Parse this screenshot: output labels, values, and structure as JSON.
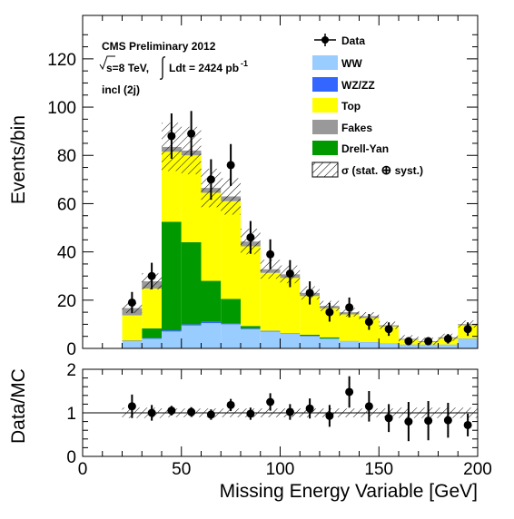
{
  "chart_data": [
    {
      "type": "bar",
      "stacked": true,
      "xlabel": "Missing Energy Variable [GeV]",
      "ylabel": "Events/bin",
      "xlim": [
        0,
        200
      ],
      "ylim": [
        0,
        138
      ],
      "xticks": [
        "0",
        "50",
        "100",
        "150",
        "200"
      ],
      "yticks": [
        "0",
        "20",
        "40",
        "60",
        "80",
        "100",
        "120"
      ],
      "bin_edges": [
        20,
        30,
        40,
        50,
        60,
        70,
        80,
        90,
        100,
        110,
        120,
        130,
        140,
        150,
        160,
        170,
        180,
        190,
        200
      ],
      "annotations": [
        "CMS Preliminary 2012",
        "incl (2j)"
      ],
      "lumi_label": {
        "sqrt_s": "s=8 TeV,",
        "integral": "Ldt = 2424 pb",
        "exponent": "-1"
      },
      "legend": {
        "placement": "top-right",
        "data": "Data",
        "ww": "WW",
        "wzzz": "WZ/ZZ",
        "top": "Top",
        "fakes": "Fakes",
        "dy": "Drell-Yan",
        "unc_prefix": "σ (stat. ",
        "unc_oplus": "⊕",
        "unc_suffix": " syst.)"
      },
      "colors": {
        "ww": "#99ccff",
        "wzzz": "#3366ff",
        "top": "#ffff00",
        "fakes": "#999999",
        "dy": "#009900",
        "data": "#000000"
      },
      "series": [
        {
          "name": "WW",
          "values": [
            3,
            4,
            7,
            9.5,
            10.5,
            10,
            8,
            7,
            6,
            5,
            4,
            3,
            2.5,
            2,
            1.5,
            1.5,
            1.5,
            4
          ]
        },
        {
          "name": "WZ/ZZ",
          "values": [
            0.2,
            0.3,
            0.5,
            0.5,
            0.5,
            0.5,
            0.3,
            0.3,
            0.2,
            0.2,
            0.1,
            0.1,
            0.1,
            0.1,
            0.1,
            0.1,
            0.1,
            0.1
          ]
        },
        {
          "name": "Drell-Yan",
          "values": [
            0,
            4,
            45,
            34,
            17,
            10,
            1,
            0,
            0,
            0.5,
            0.5,
            0,
            0,
            0,
            0,
            0,
            0,
            0
          ]
        },
        {
          "name": "Top",
          "values": [
            10.5,
            16.5,
            29,
            36,
            36.5,
            40.5,
            33,
            24,
            23,
            16,
            12,
            11,
            10,
            7,
            2,
            1,
            2.5,
            5.5
          ]
        },
        {
          "name": "Fakes",
          "values": [
            3,
            3,
            2,
            2,
            2,
            2,
            2,
            1.5,
            1.5,
            1.3,
            1,
            0.9,
            0.8,
            0.5,
            0.4,
            0.4,
            0.5,
            0.5
          ]
        }
      ],
      "data_points": {
        "name": "Data",
        "x": [
          25,
          35,
          45,
          55,
          65,
          75,
          85,
          95,
          105,
          115,
          125,
          135,
          145,
          155,
          165,
          175,
          185,
          195
        ],
        "y": [
          19,
          30,
          88,
          89,
          70,
          76,
          46,
          39,
          31,
          23,
          15,
          17,
          11,
          8,
          3,
          3,
          4,
          8
        ],
        "err": [
          4.4,
          5.5,
          9.4,
          9.4,
          8.4,
          8.7,
          6.8,
          6.2,
          5.6,
          4.8,
          3.9,
          4.1,
          3.3,
          2.8,
          1.7,
          1.7,
          2.0,
          2.8
        ]
      },
      "uncertainty_frac": 0.12
    },
    {
      "type": "scatter",
      "xlabel": "Missing Energy Variable [GeV]",
      "ylabel": "Data/MC",
      "xlim": [
        0,
        200
      ],
      "ylim": [
        0,
        2
      ],
      "xticks": [
        "0",
        "50",
        "100",
        "150",
        "200"
      ],
      "yticks": [
        "0",
        "1",
        "2"
      ],
      "reference_line": 1,
      "x": [
        25,
        35,
        45,
        55,
        65,
        75,
        85,
        95,
        105,
        115,
        125,
        135,
        145,
        155,
        165,
        175,
        185,
        195
      ],
      "y": [
        1.15,
        1.0,
        1.05,
        1.02,
        0.96,
        1.18,
        0.98,
        1.25,
        1.02,
        1.1,
        0.93,
        1.48,
        1.15,
        0.88,
        0.8,
        0.82,
        0.83,
        0.72
      ],
      "err": [
        0.27,
        0.18,
        0.11,
        0.11,
        0.12,
        0.14,
        0.14,
        0.2,
        0.18,
        0.23,
        0.25,
        0.36,
        0.35,
        0.32,
        0.45,
        0.45,
        0.4,
        0.26
      ],
      "band_halfwidth": [
        0.12,
        0.12,
        0.1,
        0.1,
        0.1,
        0.1,
        0.1,
        0.1,
        0.1,
        0.1,
        0.1,
        0.1,
        0.1,
        0.1,
        0.12,
        0.12,
        0.12,
        0.12
      ]
    }
  ]
}
